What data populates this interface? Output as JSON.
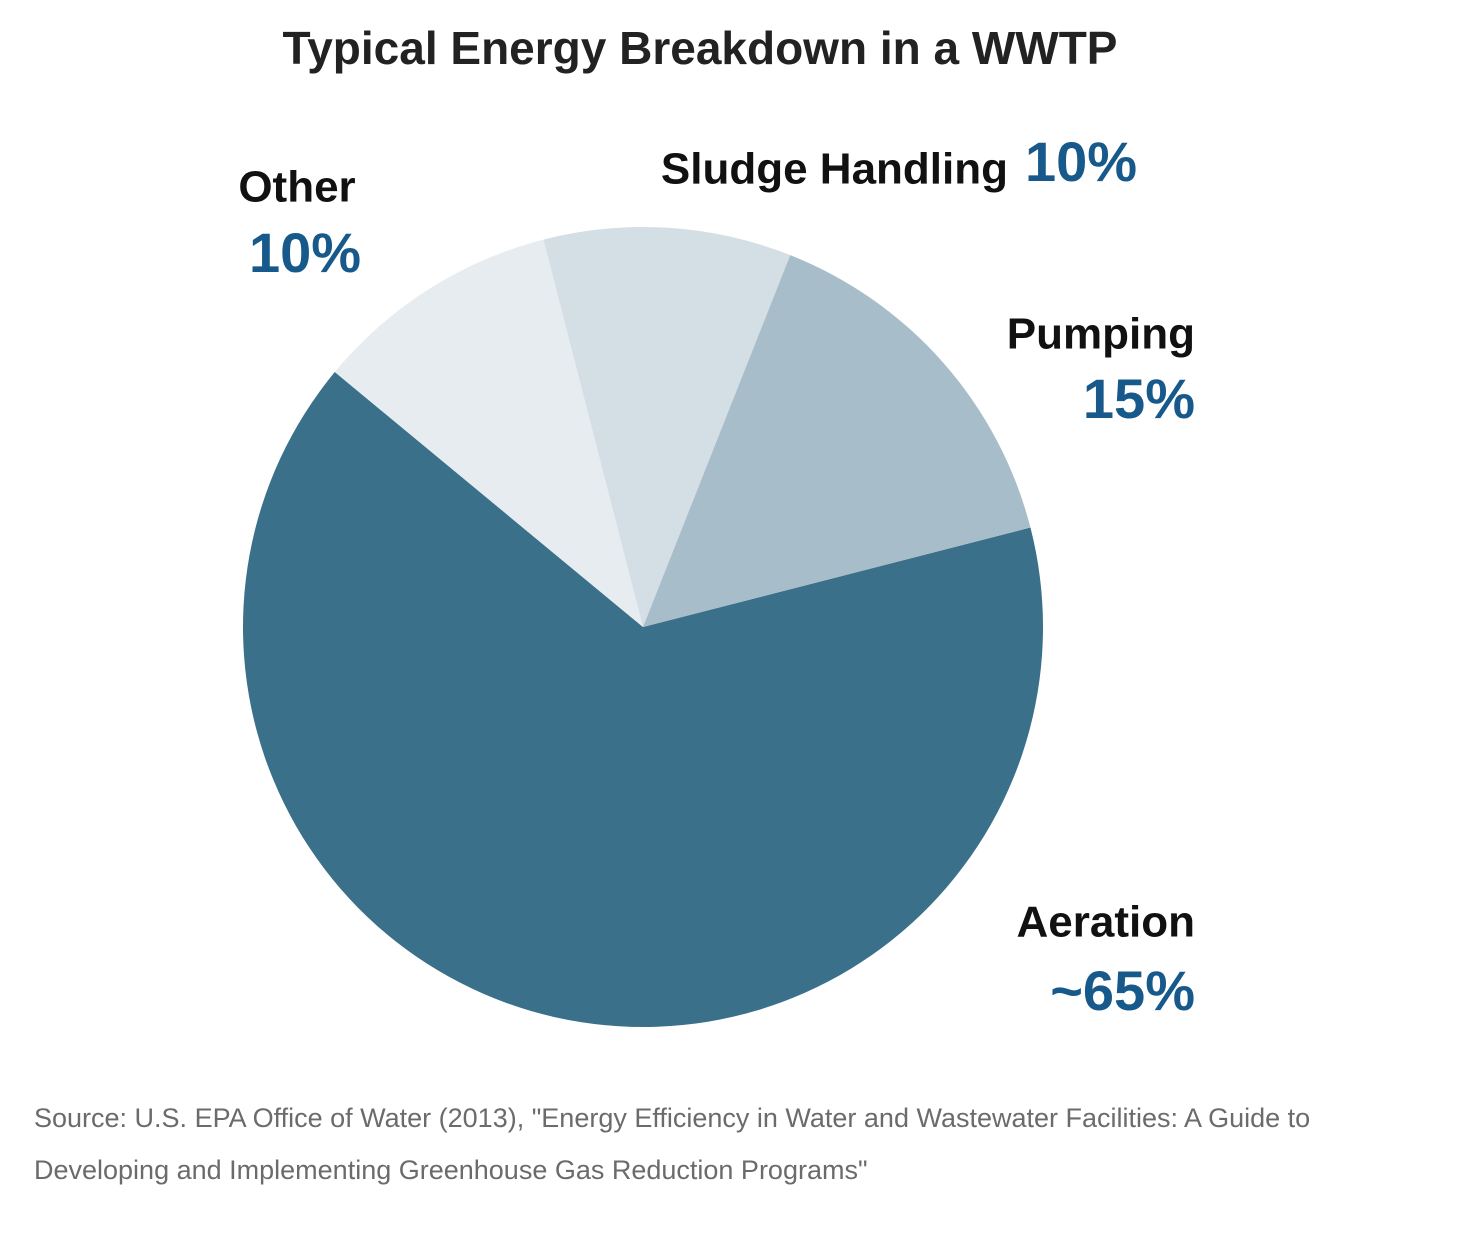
{
  "chart_data": {
    "type": "pie",
    "title": "Typical Energy Breakdown in a WWTP",
    "categories": [
      "Aeration",
      "Other",
      "Sludge Handling",
      "Pumping"
    ],
    "values": [
      65,
      10,
      10,
      15
    ],
    "value_labels": [
      "~65%",
      "10%",
      "10%",
      "15%"
    ],
    "colors": [
      "#3a7089",
      "#e6ecf0",
      "#d3dee5",
      "#a8bdca"
    ],
    "source": "Source: U.S. EPA Office of Water (2013), \"Energy Efficiency in Water and Wastewater Facilities: A Guide to Developing and Implementing Greenhouse Gas Reduction Programs\""
  }
}
